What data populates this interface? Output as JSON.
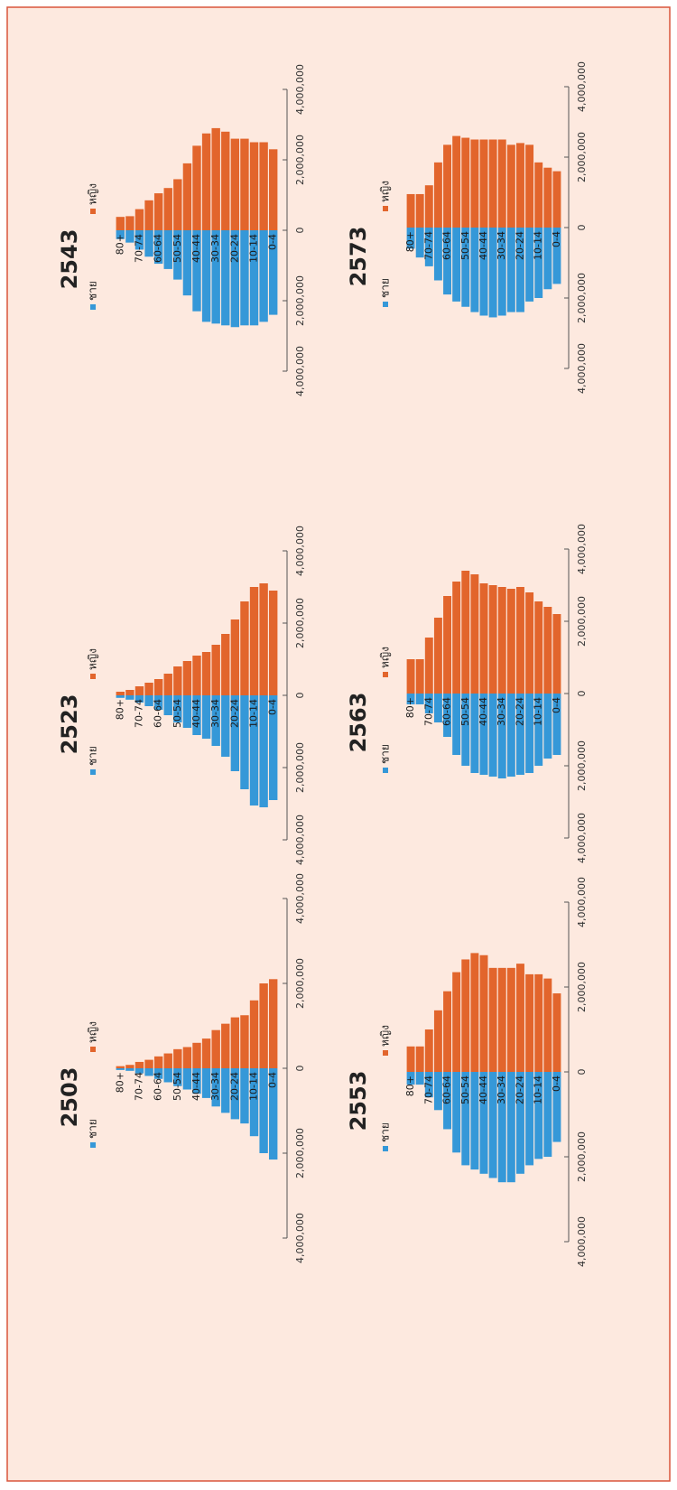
{
  "chart_data": [
    {
      "type": "pyramid",
      "title": "2503",
      "categories": [
        "0-4",
        null,
        "10-14",
        null,
        "20-24",
        null,
        "30-34",
        null,
        "40-44",
        null,
        "50-54",
        null,
        "60-64",
        null,
        "70-74",
        null,
        "80+"
      ],
      "series": [
        {
          "name": "ชาย",
          "color": "#3598d8",
          "values": [
            -2150000,
            -2000000,
            -1600000,
            -1300000,
            -1200000,
            -1050000,
            -900000,
            -700000,
            -600000,
            -500000,
            -420000,
            -330000,
            -250000,
            -180000,
            -120000,
            -60000,
            -40000
          ]
        },
        {
          "name": "หญิง",
          "color": "#e2652c",
          "values": [
            2100000,
            2000000,
            1600000,
            1250000,
            1200000,
            1050000,
            900000,
            700000,
            600000,
            500000,
            450000,
            350000,
            280000,
            200000,
            150000,
            80000,
            50000
          ]
        }
      ],
      "xlim": [
        -4000000,
        4000000
      ],
      "xticks": [
        {
          "value": -4000000,
          "label": "4,000,000"
        },
        {
          "value": -2000000,
          "label": "2,000,000"
        },
        0,
        {
          "value": 2000000,
          "label": "2,000,000"
        },
        {
          "value": 4000000,
          "label": "4,000,000"
        }
      ]
    },
    {
      "type": "pyramid",
      "title": "2523",
      "categories": [
        "0-4",
        null,
        "10-14",
        null,
        "20-24",
        null,
        "30-34",
        null,
        "40-44",
        null,
        "50-54",
        null,
        "60-64",
        null,
        "70-74",
        null,
        "80+"
      ],
      "series": [
        {
          "name": "ชาย",
          "color": "#3598d8",
          "values": [
            -2900000,
            -3100000,
            -3050000,
            -2600000,
            -2100000,
            -1700000,
            -1400000,
            -1200000,
            -1100000,
            -900000,
            -750000,
            -550000,
            -400000,
            -300000,
            -200000,
            -120000,
            -70000
          ]
        },
        {
          "name": "หญิง",
          "color": "#e2652c",
          "values": [
            2900000,
            3100000,
            3000000,
            2600000,
            2100000,
            1700000,
            1400000,
            1200000,
            1100000,
            950000,
            800000,
            600000,
            450000,
            350000,
            250000,
            150000,
            100000
          ]
        }
      ],
      "xlim": [
        -4000000,
        4000000
      ],
      "xticks": [
        {
          "value": -4000000,
          "label": "4,000,000"
        },
        {
          "value": -2000000,
          "label": "2,000,000"
        },
        0,
        {
          "value": 2000000,
          "label": "2,000,000"
        },
        {
          "value": 4000000,
          "label": "4,000,000"
        }
      ]
    },
    {
      "type": "pyramid",
      "title": "2543",
      "categories": [
        "0-4",
        null,
        "10-14",
        null,
        "20-24",
        null,
        "30-34",
        null,
        "40-44",
        null,
        "50-54",
        null,
        "60-64",
        null,
        "70-74",
        null,
        "80+"
      ],
      "series": [
        {
          "name": "ชาย",
          "color": "#3598d8",
          "values": [
            -2400000,
            -2600000,
            -2700000,
            -2700000,
            -2750000,
            -2700000,
            -2650000,
            -2600000,
            -2300000,
            -1850000,
            -1400000,
            -1100000,
            -950000,
            -750000,
            -550000,
            -350000,
            -250000
          ]
        },
        {
          "name": "หญิง",
          "color": "#e2652c",
          "values": [
            2300000,
            2500000,
            2500000,
            2600000,
            2600000,
            2800000,
            2900000,
            2750000,
            2400000,
            1900000,
            1450000,
            1200000,
            1050000,
            850000,
            600000,
            400000,
            380000
          ]
        }
      ],
      "xlim": [
        -4000000,
        4000000
      ],
      "xticks": [
        {
          "value": -4000000,
          "label": "4,000,000"
        },
        {
          "value": -2000000,
          "label": "2,000,000"
        },
        0,
        {
          "value": 2000000,
          "label": "2,000,000"
        },
        {
          "value": 4000000,
          "label": "4,000,000"
        }
      ]
    },
    {
      "type": "pyramid",
      "title": "2553",
      "categories": [
        "0-4",
        null,
        "10-14",
        null,
        "20-24",
        null,
        "30-34",
        null,
        "40-44",
        null,
        "50-54",
        null,
        "60-64",
        null,
        "70-74",
        null,
        "80+"
      ],
      "series": [
        {
          "name": "ชาย",
          "color": "#3598d8",
          "values": [
            -1650000,
            -2000000,
            -2050000,
            -2200000,
            -2400000,
            -2600000,
            -2600000,
            -2500000,
            -2400000,
            -2300000,
            -2200000,
            -1900000,
            -1350000,
            -900000,
            -600000,
            -300000,
            -300000
          ]
        },
        {
          "name": "หญิง",
          "color": "#e2652c",
          "values": [
            1850000,
            2200000,
            2300000,
            2300000,
            2550000,
            2450000,
            2450000,
            2450000,
            2750000,
            2800000,
            2650000,
            2350000,
            1900000,
            1450000,
            1000000,
            600000,
            600000
          ]
        }
      ],
      "xlim": [
        -4000000,
        4000000
      ],
      "xticks": [
        {
          "value": -4000000,
          "label": "4,000,000"
        },
        {
          "value": -2000000,
          "label": "2,000,000"
        },
        0,
        {
          "value": 2000000,
          "label": "2,000,000"
        },
        {
          "value": 4000000,
          "label": "4,000,000"
        }
      ]
    },
    {
      "type": "pyramid",
      "title": "2563",
      "categories": [
        "0-4",
        null,
        "10-14",
        null,
        "20-24",
        null,
        "30-34",
        null,
        "40-44",
        null,
        "50-54",
        null,
        "60-64",
        null,
        "70-74",
        null,
        "80+"
      ],
      "series": [
        {
          "name": "ชาย",
          "color": "#3598d8",
          "values": [
            -1700000,
            -1800000,
            -2000000,
            -2200000,
            -2250000,
            -2300000,
            -2350000,
            -2300000,
            -2250000,
            -2200000,
            -2000000,
            -1700000,
            -1200000,
            -800000,
            -550000,
            -300000,
            -300000
          ]
        },
        {
          "name": "หญิง",
          "color": "#e2652c",
          "values": [
            2200000,
            2400000,
            2550000,
            2800000,
            2950000,
            2900000,
            2950000,
            3000000,
            3050000,
            3300000,
            3400000,
            3100000,
            2700000,
            2100000,
            1550000,
            950000,
            950000
          ]
        }
      ],
      "xlim": [
        -4000000,
        4000000
      ],
      "xticks": [
        {
          "value": -4000000,
          "label": "4,000,000"
        },
        {
          "value": -2000000,
          "label": "2,000,000"
        },
        0,
        {
          "value": 2000000,
          "label": "2,000,000"
        },
        {
          "value": 4000000,
          "label": "4,000,000"
        }
      ]
    },
    {
      "type": "pyramid",
      "title": "2573",
      "categories": [
        "0-4",
        null,
        "10-14",
        null,
        "20-24",
        null,
        "30-34",
        null,
        "40-44",
        null,
        "50-54",
        null,
        "60-64",
        null,
        "70-74",
        null,
        "80+"
      ],
      "series": [
        {
          "name": "ชาย",
          "color": "#3598d8",
          "values": [
            -1600000,
            -1750000,
            -2000000,
            -2100000,
            -2400000,
            -2400000,
            -2500000,
            -2550000,
            -2500000,
            -2400000,
            -2250000,
            -2100000,
            -1900000,
            -1500000,
            -1100000,
            -850000,
            -600000
          ]
        },
        {
          "name": "หญิง",
          "color": "#e2652c",
          "values": [
            1600000,
            1700000,
            1850000,
            2350000,
            2400000,
            2350000,
            2500000,
            2500000,
            2500000,
            2500000,
            2550000,
            2600000,
            2350000,
            1850000,
            1200000,
            950000,
            950000
          ]
        }
      ],
      "xlim": [
        -4000000,
        4000000
      ],
      "xticks": [
        {
          "value": -4000000,
          "label": "4,000,000"
        },
        {
          "value": -2000000,
          "label": "2,000,000"
        },
        0,
        {
          "value": 2000000,
          "label": "2,000,000"
        },
        {
          "value": 4000000,
          "label": "4,000,000"
        }
      ]
    }
  ]
}
